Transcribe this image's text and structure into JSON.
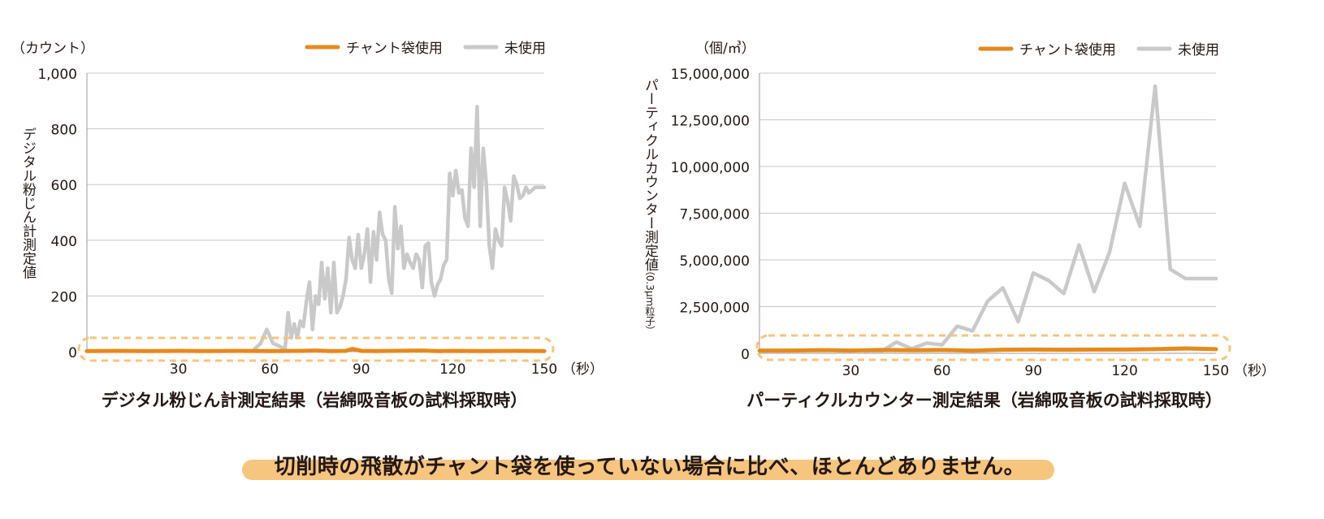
{
  "colors": {
    "used": "#e58a1d",
    "unused": "#c9c9c9",
    "grid": "#c8c8c8",
    "highlight": "#f6c57e",
    "text": "#231815"
  },
  "chart_data": [
    {
      "type": "line",
      "title": "デジタル粉じん計測定結果（岩綿吸音板の試料採取時）",
      "unit_label": "（カウント）",
      "ylabel": "デジタル粉じん計測定値",
      "xunit": "（秒）",
      "ylim": [
        0,
        1000
      ],
      "xlim": [
        0,
        150
      ],
      "yticks": [
        0,
        200,
        400,
        600,
        800,
        1000
      ],
      "ytick_labels": [
        "0",
        "200",
        "400",
        "600",
        "800",
        "1,000"
      ],
      "xticks": [
        30,
        60,
        90,
        120,
        150
      ],
      "xtick_labels": [
        "30",
        "60",
        "90",
        "120",
        "150"
      ],
      "legend": {
        "position": "top-right",
        "entries": [
          "チャント袋使用",
          "未使用"
        ]
      },
      "highlight": "dashed ellipse around the チャント袋使用 series",
      "series": [
        {
          "name": "チャント袋使用",
          "x": [
            0,
            10,
            20,
            30,
            40,
            50,
            60,
            70,
            75,
            80,
            85,
            87,
            88,
            90,
            95,
            100,
            110,
            115,
            120,
            130,
            140,
            150
          ],
          "values": [
            2,
            3,
            2,
            3,
            2,
            3,
            2,
            3,
            4,
            2,
            3,
            10,
            8,
            3,
            2,
            3,
            4,
            2,
            3,
            2,
            3,
            2
          ]
        },
        {
          "name": "未使用",
          "x": [
            55,
            57,
            59,
            61,
            63,
            65,
            66,
            67,
            68,
            69,
            70,
            71,
            72,
            73,
            74,
            75,
            76,
            77,
            78,
            79,
            80,
            81,
            82,
            83,
            84,
            85,
            86,
            87,
            88,
            89,
            90,
            91,
            92,
            93,
            94,
            95,
            96,
            97,
            98,
            99,
            100,
            101,
            102,
            103,
            104,
            105,
            106,
            107,
            108,
            109,
            110,
            111,
            112,
            113,
            114,
            115,
            116,
            117,
            118,
            119,
            120,
            121,
            122,
            123,
            124,
            125,
            126,
            127,
            128,
            129,
            130,
            131,
            132,
            133,
            134,
            135,
            136,
            137,
            138,
            139,
            140,
            141,
            142,
            143,
            144,
            145,
            146,
            147,
            148,
            149,
            150
          ],
          "values": [
            10,
            30,
            80,
            30,
            20,
            10,
            140,
            50,
            100,
            50,
            110,
            90,
            180,
            250,
            80,
            200,
            170,
            320,
            190,
            300,
            140,
            320,
            140,
            160,
            200,
            260,
            410,
            330,
            300,
            420,
            300,
            350,
            440,
            250,
            430,
            330,
            500,
            420,
            400,
            260,
            210,
            520,
            370,
            450,
            300,
            350,
            320,
            300,
            350,
            330,
            230,
            380,
            390,
            250,
            200,
            240,
            260,
            310,
            330,
            640,
            560,
            650,
            570,
            580,
            480,
            450,
            730,
            590,
            880,
            450,
            730,
            600,
            380,
            300,
            440,
            400,
            380,
            590,
            540,
            470,
            630,
            600,
            550,
            560,
            590,
            570,
            580,
            590,
            590,
            590,
            590
          ]
        }
      ]
    },
    {
      "type": "line",
      "title": "パーティクルカウンター測定結果（岩綿吸音板の試料採取時）",
      "unit_label": "（個/㎥）",
      "ylabel": "パーティクルカウンター測定値",
      "ylabel_sub": "（0.3μm粒子）",
      "xunit": "（秒）",
      "ylim": [
        0,
        15000000
      ],
      "xlim": [
        0,
        150
      ],
      "yticks": [
        0,
        2500000,
        5000000,
        7500000,
        10000000,
        12500000,
        15000000
      ],
      "ytick_labels": [
        "0",
        "2,500,000",
        "5,000,000",
        "7,500,000",
        "10,000,000",
        "12,500,000",
        "15,000,000"
      ],
      "xticks": [
        30,
        60,
        90,
        120,
        150
      ],
      "xtick_labels": [
        "30",
        "60",
        "90",
        "120",
        "150"
      ],
      "legend": {
        "position": "top-right",
        "entries": [
          "チャント袋使用",
          "未使用"
        ]
      },
      "highlight": "dashed ellipse around the チャント袋使用 series",
      "series": [
        {
          "name": "チャント袋使用",
          "x": [
            0,
            10,
            20,
            30,
            40,
            50,
            60,
            70,
            80,
            90,
            100,
            110,
            120,
            130,
            140,
            150
          ],
          "values": [
            150000,
            150000,
            170000,
            150000,
            180000,
            160000,
            180000,
            140000,
            190000,
            200000,
            190000,
            200000,
            200000,
            220000,
            260000,
            220000
          ]
        },
        {
          "name": "未使用",
          "x": [
            35,
            40,
            45,
            50,
            55,
            60,
            65,
            70,
            75,
            80,
            85,
            90,
            95,
            100,
            105,
            110,
            115,
            120,
            125,
            130,
            135,
            140,
            145,
            150
          ],
          "values": [
            100000,
            100000,
            600000,
            250000,
            550000,
            450000,
            1450000,
            1200000,
            2800000,
            3500000,
            1700000,
            4300000,
            3900000,
            3200000,
            5800000,
            3300000,
            5400000,
            9100000,
            6800000,
            14300000,
            4500000,
            4000000,
            4000000,
            4000000
          ]
        }
      ]
    }
  ],
  "caption": "切削時の飛散がチャント袋を使っていない場合に比べ、ほとんどありません。"
}
